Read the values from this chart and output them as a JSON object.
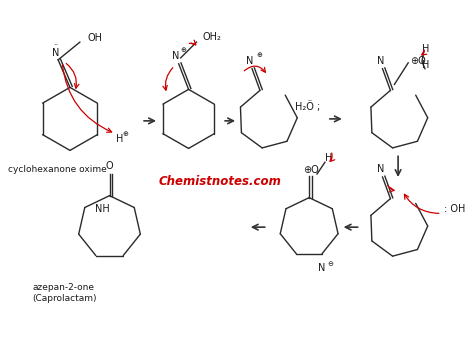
{
  "background_color": "#ffffff",
  "watermark": "Chemistnotes.com",
  "watermark_color": "#cc0000",
  "label1": "cyclohexanone oxime",
  "label2": "azepan-2-one\n(Caprolactam)",
  "text_color": "#1a1a1a",
  "arrow_color": "#cc0000",
  "struct_color": "#2a2a2a",
  "figsize": [
    4.74,
    3.49
  ],
  "dpi": 100
}
